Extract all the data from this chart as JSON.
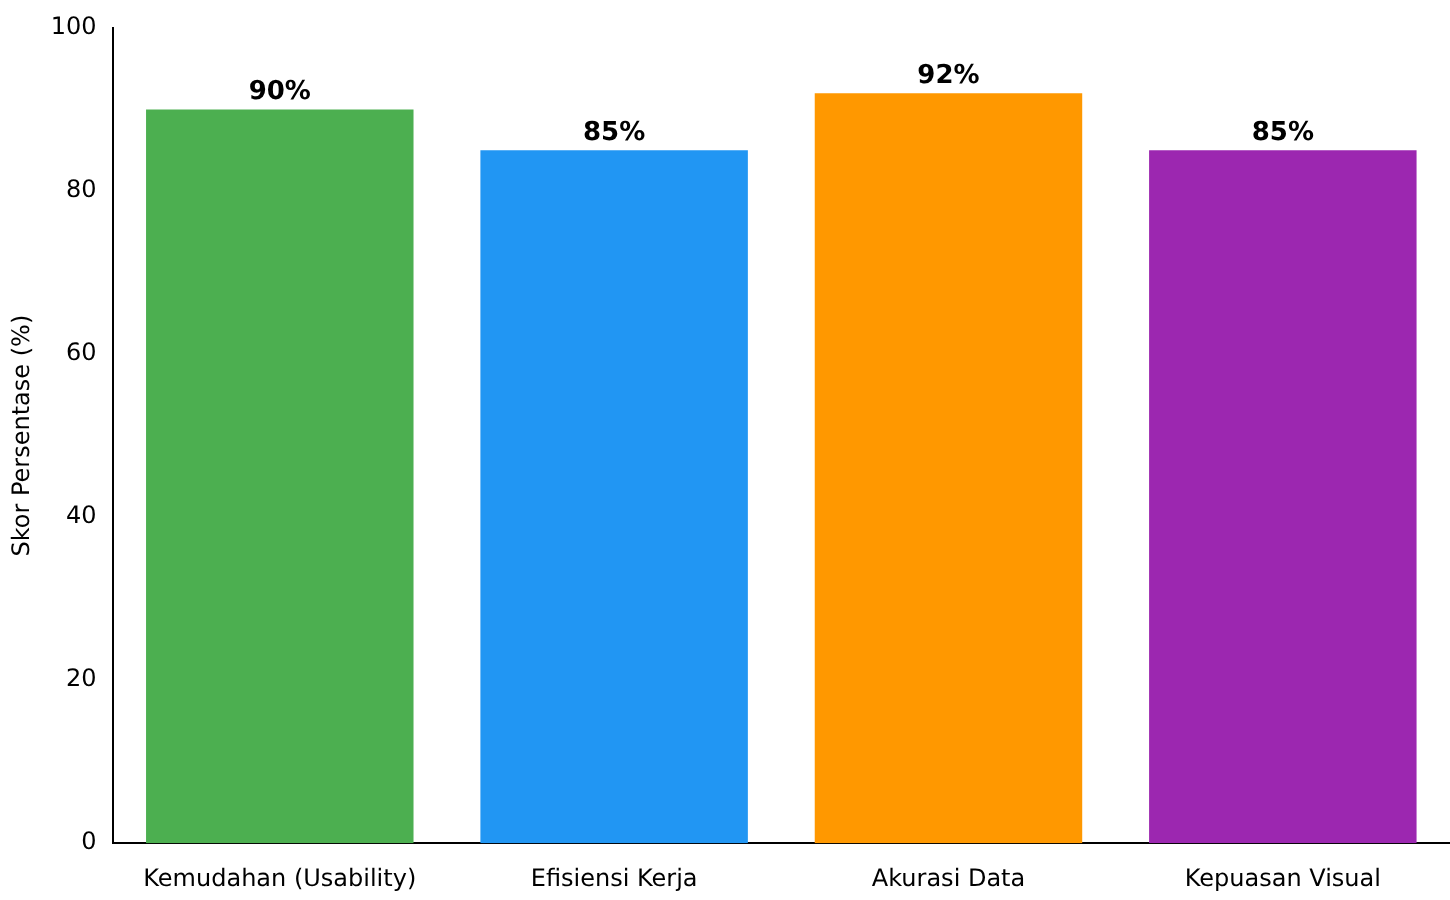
{
  "chart_data": {
    "type": "bar",
    "ylabel": "Skor Persentase (%)",
    "categories": [
      "Kemudahan (Usability)",
      "Efisiensi Kerja",
      "Akurasi Data",
      "Kepuasan Visual"
    ],
    "values": [
      90,
      85,
      92,
      85
    ],
    "colors": [
      "#4caf50",
      "#2196f3",
      "#ff9800",
      "#9c27b0"
    ],
    "value_labels": [
      "90%",
      "85%",
      "92%",
      "85%"
    ],
    "ylim": [
      0,
      100
    ],
    "yticks": [
      0,
      20,
      40,
      60,
      80,
      100
    ],
    "grid": false,
    "legend": false
  }
}
